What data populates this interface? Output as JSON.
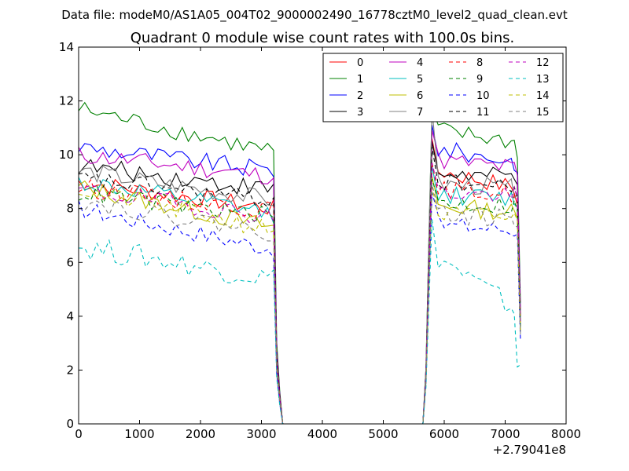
{
  "chart_data": {
    "type": "line",
    "suptitle": "Data file: modeM0/AS1A05_004T02_9000002490_16778cztM0_level2_quad_clean.evt",
    "title": "Quadrant 0 module wise count rates with 100.0s bins.",
    "xlabel": "",
    "ylabel": "",
    "x_offset_label": "+2.79041e8",
    "xlim": [
      0,
      8000
    ],
    "ylim": [
      0,
      14
    ],
    "xticks": [
      0,
      1000,
      2000,
      3000,
      4000,
      5000,
      6000,
      7000,
      8000
    ],
    "yticks": [
      0,
      2,
      4,
      6,
      8,
      10,
      12,
      14
    ],
    "grid": false,
    "legend_position": "top-right",
    "legend_columns": 4,
    "segment1_x": [
      0,
      100,
      200,
      300,
      400,
      500,
      600,
      700,
      800,
      900,
      1000,
      1100,
      1200,
      1300,
      1400,
      1500,
      1600,
      1700,
      1800,
      1900,
      2000,
      2100,
      2200,
      2300,
      2400,
      2500,
      2600,
      2700,
      2800,
      2900,
      3000,
      3100,
      3200
    ],
    "segment1_tail_x": [
      3250,
      3300,
      3350
    ],
    "segment2_x": [
      5650,
      5700,
      5750,
      5800,
      5900,
      6000,
      6100,
      6200,
      6300,
      6400,
      6500,
      6600,
      6700,
      6800,
      6900,
      7000,
      7100,
      7150,
      7200,
      7250
    ],
    "series": [
      {
        "name": "0",
        "color": "#ff0000",
        "dashed": false,
        "level1": 9.0,
        "slope1": -1.0,
        "level2": 9.4,
        "peak2": 10.6,
        "end2": 8.1
      },
      {
        "name": "1",
        "color": "#008000",
        "dashed": false,
        "level1": 11.7,
        "slope1": -1.6,
        "level2": 10.9,
        "peak2": 11.7,
        "end2": 10.0
      },
      {
        "name": "2",
        "color": "#0000ff",
        "dashed": false,
        "level1": 10.3,
        "slope1": -0.9,
        "level2": 10.2,
        "peak2": 11.1,
        "end2": 9.3
      },
      {
        "name": "3",
        "color": "#000000",
        "dashed": false,
        "level1": 9.6,
        "slope1": -0.9,
        "level2": 9.3,
        "peak2": 10.5,
        "end2": 9.0
      },
      {
        "name": "4",
        "color": "#bf00bf",
        "dashed": false,
        "level1": 10.0,
        "slope1": -0.8,
        "level2": 9.8,
        "peak2": 10.9,
        "end2": 9.2
      },
      {
        "name": "5",
        "color": "#00bfbf",
        "dashed": false,
        "level1": 9.0,
        "slope1": -1.2,
        "level2": 8.5,
        "peak2": 9.6,
        "end2": 8.2
      },
      {
        "name": "6",
        "color": "#bfbf00",
        "dashed": false,
        "level1": 8.8,
        "slope1": -1.5,
        "level2": 8.1,
        "peak2": 9.2,
        "end2": 7.6
      },
      {
        "name": "7",
        "color": "#808080",
        "dashed": false,
        "level1": 9.4,
        "slope1": -1.1,
        "level2": 8.9,
        "peak2": 11.7,
        "end2": 8.6
      },
      {
        "name": "8",
        "color": "#ff0000",
        "dashed": true,
        "level1": 8.8,
        "slope1": -0.9,
        "level2": 8.7,
        "peak2": 9.7,
        "end2": 8.4
      },
      {
        "name": "9",
        "color": "#008000",
        "dashed": true,
        "level1": 8.6,
        "slope1": -0.9,
        "level2": 8.2,
        "peak2": 9.1,
        "end2": 8.0
      },
      {
        "name": "10",
        "color": "#0000ff",
        "dashed": true,
        "level1": 8.0,
        "slope1": -1.5,
        "level2": 7.4,
        "peak2": 8.6,
        "end2": 7.0
      },
      {
        "name": "11",
        "color": "#000000",
        "dashed": true,
        "level1": 9.1,
        "slope1": -0.8,
        "level2": 9.0,
        "peak2": 10.3,
        "end2": 8.5
      },
      {
        "name": "12",
        "color": "#bf00bf",
        "dashed": true,
        "level1": 8.7,
        "slope1": -1.0,
        "level2": 8.6,
        "peak2": 9.7,
        "end2": 8.3
      },
      {
        "name": "13",
        "color": "#00bfbf",
        "dashed": true,
        "level1": 6.6,
        "slope1": -1.2,
        "level2": 6.2,
        "peak2": 7.6,
        "end2": 2.2
      },
      {
        "name": "14",
        "color": "#bfbf00",
        "dashed": true,
        "level1": 8.7,
        "slope1": -1.5,
        "level2": 7.8,
        "peak2": 8.8,
        "end2": 7.5
      },
      {
        "name": "15",
        "color": "#808080",
        "dashed": true,
        "level1": 8.3,
        "slope1": -1.2,
        "level2": 7.8,
        "peak2": 8.9,
        "end2": 7.4
      }
    ]
  }
}
